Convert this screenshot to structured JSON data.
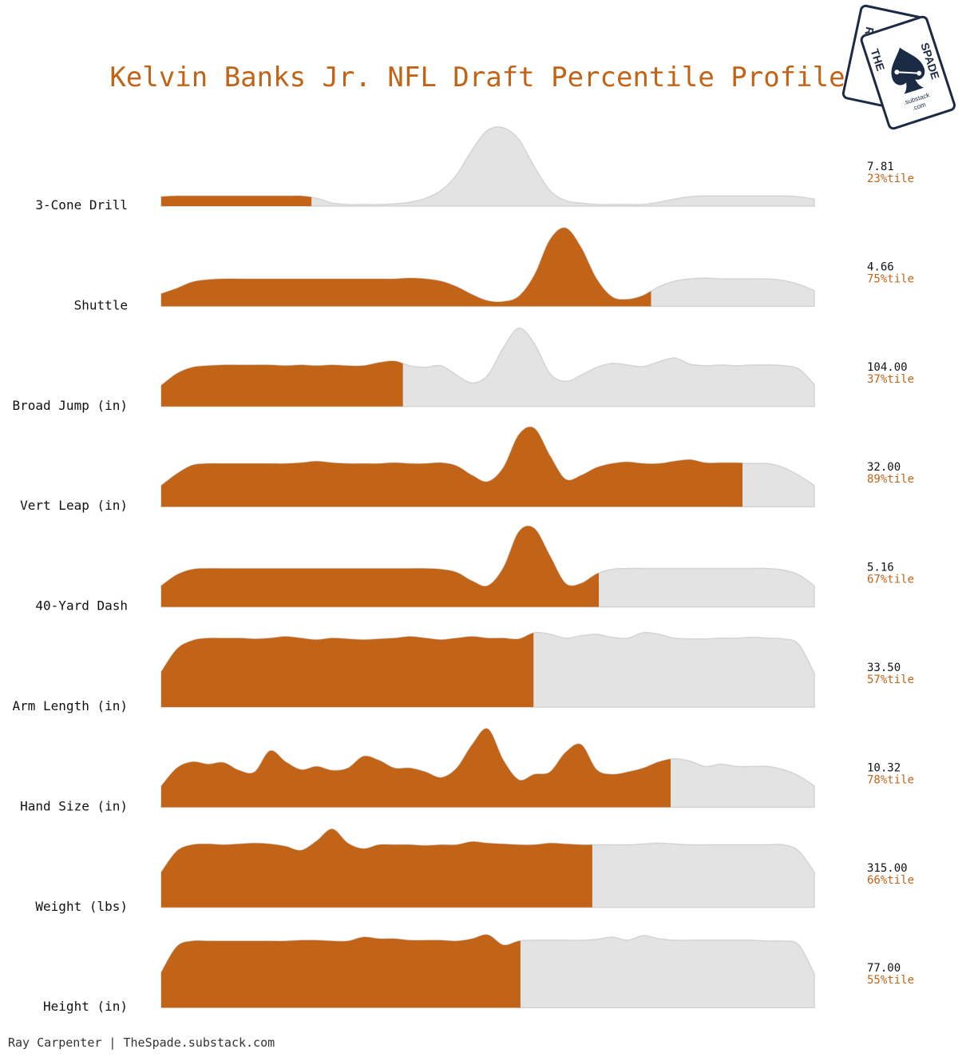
{
  "title": "Kelvin Banks Jr. NFL Draft Percentile Profile",
  "credit": "Ray Carpenter | TheSpade.substack.com",
  "logo": {
    "back_card": "RC",
    "front_card_left": "THE",
    "front_card_right": "SPADE",
    "domain_line1": ".substack",
    "domain_line2": ".com",
    "icon": "spade-icon"
  },
  "colors": {
    "accent": "#c26417",
    "density_bg": "#e3e3e3",
    "density_stroke": "#d4d4d4",
    "logo_navy": "#1c2b44"
  },
  "chart_data": {
    "type": "area",
    "subtype": "ridgeline-density-percentile",
    "xlabel": "",
    "ylabel": "",
    "grid": false,
    "legend": "none",
    "metrics": [
      {
        "label": "3-Cone Drill",
        "value_text": "7.81",
        "percentile": 23,
        "percentile_text": "23%tile",
        "density": [
          0.12,
          0.13,
          0.13,
          0.13,
          0.13,
          0.13,
          0.13,
          0.13,
          0.13,
          0.13,
          0.1,
          0.04,
          0.02,
          0.02,
          0.02,
          0.03,
          0.05,
          0.1,
          0.2,
          0.4,
          0.72,
          0.97,
          1.0,
          0.85,
          0.5,
          0.2,
          0.07,
          0.04,
          0.02,
          0.02,
          0.02,
          0.02,
          0.05,
          0.09,
          0.12,
          0.13,
          0.13,
          0.13,
          0.13,
          0.13,
          0.13,
          0.12,
          0.09
        ]
      },
      {
        "label": "Shuttle",
        "value_text": "4.66",
        "percentile": 75,
        "percentile_text": "75%tile",
        "density": [
          0.16,
          0.23,
          0.31,
          0.34,
          0.35,
          0.35,
          0.35,
          0.35,
          0.35,
          0.35,
          0.35,
          0.35,
          0.35,
          0.35,
          0.35,
          0.35,
          0.36,
          0.35,
          0.32,
          0.25,
          0.15,
          0.07,
          0.06,
          0.13,
          0.4,
          0.85,
          1.0,
          0.75,
          0.35,
          0.12,
          0.09,
          0.14,
          0.25,
          0.32,
          0.35,
          0.36,
          0.35,
          0.35,
          0.35,
          0.35,
          0.33,
          0.28,
          0.2
        ]
      },
      {
        "label": "Broad Jump (in)",
        "value_text": "104.00",
        "percentile": 37,
        "percentile_text": "37%tile",
        "density": [
          0.27,
          0.42,
          0.5,
          0.52,
          0.53,
          0.53,
          0.53,
          0.53,
          0.52,
          0.53,
          0.52,
          0.53,
          0.52,
          0.52,
          0.56,
          0.58,
          0.52,
          0.5,
          0.52,
          0.4,
          0.3,
          0.4,
          0.75,
          1.0,
          0.8,
          0.42,
          0.32,
          0.4,
          0.5,
          0.55,
          0.53,
          0.51,
          0.57,
          0.62,
          0.54,
          0.52,
          0.53,
          0.52,
          0.53,
          0.53,
          0.52,
          0.48,
          0.28
        ]
      },
      {
        "label": "Vert Leap (in)",
        "value_text": "32.00",
        "percentile": 89,
        "percentile_text": "89%tile",
        "density": [
          0.27,
          0.42,
          0.53,
          0.55,
          0.55,
          0.55,
          0.55,
          0.55,
          0.55,
          0.56,
          0.58,
          0.56,
          0.55,
          0.55,
          0.55,
          0.56,
          0.55,
          0.55,
          0.56,
          0.52,
          0.4,
          0.32,
          0.5,
          0.92,
          1.0,
          0.65,
          0.35,
          0.4,
          0.5,
          0.55,
          0.57,
          0.55,
          0.55,
          0.58,
          0.6,
          0.56,
          0.56,
          0.56,
          0.55,
          0.55,
          0.5,
          0.4,
          0.27
        ]
      },
      {
        "label": "40-Yard Dash",
        "value_text": "5.16",
        "percentile": 67,
        "percentile_text": "67%tile",
        "density": [
          0.27,
          0.41,
          0.48,
          0.49,
          0.49,
          0.49,
          0.49,
          0.49,
          0.49,
          0.49,
          0.49,
          0.49,
          0.49,
          0.49,
          0.49,
          0.49,
          0.49,
          0.49,
          0.48,
          0.44,
          0.33,
          0.27,
          0.5,
          0.96,
          1.0,
          0.65,
          0.3,
          0.3,
          0.42,
          0.48,
          0.49,
          0.49,
          0.49,
          0.49,
          0.49,
          0.49,
          0.49,
          0.49,
          0.49,
          0.49,
          0.47,
          0.41,
          0.27
        ]
      },
      {
        "label": "Arm Length (in)",
        "value_text": "33.50",
        "percentile": 57,
        "percentile_text": "57%tile",
        "density": [
          0.45,
          0.74,
          0.85,
          0.88,
          0.88,
          0.88,
          0.87,
          0.88,
          0.9,
          0.88,
          0.86,
          0.88,
          0.87,
          0.86,
          0.87,
          0.88,
          0.9,
          0.88,
          0.86,
          0.88,
          0.9,
          0.88,
          0.88,
          0.87,
          0.95,
          0.93,
          0.88,
          0.91,
          0.93,
          0.89,
          0.88,
          0.95,
          0.93,
          0.88,
          0.87,
          0.87,
          0.88,
          0.88,
          0.89,
          0.88,
          0.87,
          0.8,
          0.43
        ]
      },
      {
        "label": "Hand Size (in)",
        "value_text": "10.32",
        "percentile": 78,
        "percentile_text": "78%tile",
        "density": [
          0.27,
          0.5,
          0.58,
          0.55,
          0.57,
          0.47,
          0.45,
          0.72,
          0.58,
          0.48,
          0.52,
          0.47,
          0.5,
          0.65,
          0.6,
          0.5,
          0.5,
          0.45,
          0.38,
          0.5,
          0.8,
          1.0,
          0.6,
          0.35,
          0.42,
          0.45,
          0.7,
          0.8,
          0.48,
          0.42,
          0.45,
          0.5,
          0.58,
          0.62,
          0.59,
          0.52,
          0.55,
          0.52,
          0.52,
          0.52,
          0.48,
          0.4,
          0.27
        ]
      },
      {
        "label": "Weight (lbs)",
        "value_text": "315.00",
        "percentile": 66,
        "percentile_text": "66%tile",
        "density": [
          0.45,
          0.72,
          0.8,
          0.81,
          0.8,
          0.81,
          0.82,
          0.81,
          0.78,
          0.73,
          0.85,
          1.0,
          0.82,
          0.75,
          0.8,
          0.8,
          0.8,
          0.79,
          0.8,
          0.8,
          0.84,
          0.82,
          0.81,
          0.8,
          0.8,
          0.82,
          0.81,
          0.8,
          0.8,
          0.8,
          0.8,
          0.81,
          0.82,
          0.81,
          0.8,
          0.8,
          0.8,
          0.8,
          0.8,
          0.8,
          0.8,
          0.72,
          0.45
        ]
      },
      {
        "label": "Height (in)",
        "value_text": "77.00",
        "percentile": 55,
        "percentile_text": "55%tile",
        "density": [
          0.45,
          0.78,
          0.85,
          0.85,
          0.85,
          0.85,
          0.85,
          0.85,
          0.85,
          0.86,
          0.86,
          0.85,
          0.85,
          0.9,
          0.88,
          0.88,
          0.86,
          0.86,
          0.86,
          0.85,
          0.88,
          0.93,
          0.8,
          0.85,
          0.86,
          0.86,
          0.86,
          0.86,
          0.87,
          0.9,
          0.86,
          0.92,
          0.88,
          0.86,
          0.86,
          0.86,
          0.86,
          0.86,
          0.86,
          0.85,
          0.85,
          0.8,
          0.43
        ]
      }
    ]
  }
}
